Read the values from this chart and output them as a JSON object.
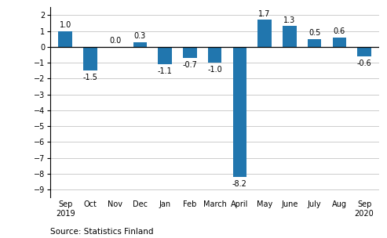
{
  "categories": [
    "Sep\n2019",
    "Oct",
    "Nov",
    "Dec",
    "Jan",
    "Feb",
    "March",
    "April",
    "May",
    "June",
    "July",
    "Aug",
    "Sep\n2020"
  ],
  "values": [
    1.0,
    -1.5,
    0.0,
    0.3,
    -1.1,
    -0.7,
    -1.0,
    -8.2,
    1.7,
    1.3,
    0.5,
    0.6,
    -0.6
  ],
  "bar_color": "#2176ae",
  "ylim": [
    -9.5,
    2.5
  ],
  "yticks": [
    -9,
    -8,
    -7,
    -6,
    -5,
    -4,
    -3,
    -2,
    -1,
    0,
    1,
    2
  ],
  "source_text": "Source: Statistics Finland",
  "background_color": "#ffffff",
  "grid_color": "#cccccc",
  "label_fontsize": 7.0,
  "axis_fontsize": 7.0,
  "source_fontsize": 7.5,
  "bar_width": 0.55
}
